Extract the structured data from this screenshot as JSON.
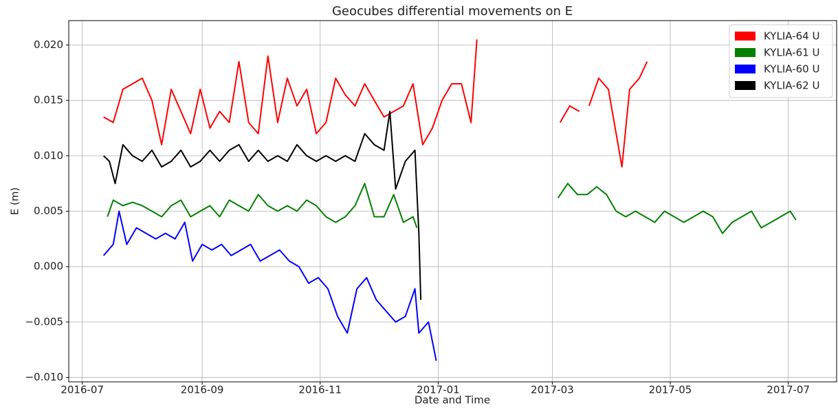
{
  "chart_data": {
    "type": "line",
    "title": "Geocubes differential movements on E",
    "xlabel": "Date and Time",
    "ylabel": "E (m)",
    "xlim": [
      "2016-06-24",
      "2017-07-26"
    ],
    "xticks": [
      "2016-07",
      "2016-09",
      "2016-11",
      "2017-01",
      "2017-03",
      "2017-05",
      "2017-07"
    ],
    "ylim": [
      -0.0104,
      0.0222
    ],
    "yticks": [
      {
        "value": -0.01,
        "label": "−0.010"
      },
      {
        "value": -0.005,
        "label": "−0.005"
      },
      {
        "value": 0,
        "label": "0.000"
      },
      {
        "value": 0.005,
        "label": "0.005"
      },
      {
        "value": 0.01,
        "label": "0.010"
      },
      {
        "value": 0.015,
        "label": "0.015"
      },
      {
        "value": 0.02,
        "label": "0.020"
      }
    ],
    "grid": true,
    "legend": "upper right",
    "series": [
      {
        "name": "KYLIA-64 U",
        "color": "#ff0000",
        "x": [
          "2016-07-12",
          "2016-07-17",
          "2016-07-22",
          "2016-07-27",
          "2016-08-01",
          "2016-08-06",
          "2016-08-11",
          "2016-08-16",
          "2016-08-21",
          "2016-08-26",
          "2016-08-31",
          "2016-09-05",
          "2016-09-10",
          "2016-09-15",
          "2016-09-20",
          "2016-09-25",
          "2016-09-30",
          "2016-10-05",
          "2016-10-10",
          "2016-10-15",
          "2016-10-20",
          "2016-10-25",
          "2016-10-30",
          "2016-11-04",
          "2016-11-09",
          "2016-11-14",
          "2016-11-19",
          "2016-11-24",
          "2016-11-29",
          "2016-12-04",
          "2016-12-09",
          "2016-12-14",
          "2016-12-19",
          "2016-12-24",
          "2016-12-29",
          "2017-01-03",
          "2017-01-08",
          "2017-01-13",
          "2017-01-18",
          "2017-01-21",
          "2017-02-10",
          "2017-02-27",
          "2017-03-02",
          "2017-03-05",
          "2017-03-10",
          "2017-03-15",
          "2017-03-17",
          "2017-03-20",
          "2017-03-25",
          "2017-03-30",
          "2017-04-04",
          "2017-04-06",
          "2017-04-10",
          "2017-04-15",
          "2017-04-19"
        ],
        "values": [
          0.0135,
          0.013,
          0.016,
          0.0165,
          0.017,
          0.015,
          0.011,
          0.016,
          0.014,
          0.012,
          0.016,
          0.0125,
          0.014,
          0.013,
          0.0185,
          0.013,
          0.012,
          0.019,
          0.013,
          0.017,
          0.0145,
          0.016,
          0.012,
          0.013,
          0.017,
          0.0155,
          0.0145,
          0.0165,
          0.015,
          0.0135,
          0.014,
          0.0145,
          0.0165,
          0.011,
          0.0125,
          0.015,
          0.0165,
          0.0165,
          0.013,
          0.0205,
          null,
          0.017,
          null,
          0.013,
          0.0145,
          0.014,
          null,
          0.0145,
          0.017,
          0.016,
          0.011,
          0.009,
          0.016,
          0.017,
          0.0185
        ]
      },
      {
        "name": "KYLIA-61 U",
        "color": "#008000",
        "x": [
          "2016-07-14",
          "2016-07-17",
          "2016-07-22",
          "2016-07-27",
          "2016-08-01",
          "2016-08-06",
          "2016-08-11",
          "2016-08-16",
          "2016-08-21",
          "2016-08-26",
          "2016-08-31",
          "2016-09-05",
          "2016-09-10",
          "2016-09-15",
          "2016-09-20",
          "2016-09-25",
          "2016-09-30",
          "2016-10-05",
          "2016-10-10",
          "2016-10-15",
          "2016-10-20",
          "2016-10-25",
          "2016-10-30",
          "2016-11-04",
          "2016-11-09",
          "2016-11-14",
          "2016-11-19",
          "2016-11-24",
          "2016-11-29",
          "2016-12-04",
          "2016-12-09",
          "2016-12-14",
          "2016-12-19",
          "2016-12-21",
          "2017-02-10",
          "2017-03-04",
          "2017-03-09",
          "2017-03-14",
          "2017-03-19",
          "2017-03-24",
          "2017-03-29",
          "2017-04-03",
          "2017-04-08",
          "2017-04-13",
          "2017-04-18",
          "2017-04-23",
          "2017-04-28",
          "2017-05-03",
          "2017-05-08",
          "2017-05-13",
          "2017-05-18",
          "2017-05-23",
          "2017-05-28",
          "2017-06-02",
          "2017-06-07",
          "2017-06-12",
          "2017-06-17",
          "2017-06-22",
          "2017-06-27",
          "2017-07-02",
          "2017-07-05"
        ],
        "values": [
          0.0045,
          0.006,
          0.0055,
          0.0058,
          0.0055,
          0.005,
          0.0045,
          0.0055,
          0.006,
          0.0045,
          0.005,
          0.0055,
          0.0045,
          0.006,
          0.0055,
          0.005,
          0.0065,
          0.0055,
          0.005,
          0.0055,
          0.005,
          0.006,
          0.0055,
          0.0045,
          0.004,
          0.0045,
          0.0055,
          0.0075,
          0.0045,
          0.0045,
          0.0065,
          0.004,
          0.0045,
          0.0035,
          null,
          0.0062,
          0.0075,
          0.0065,
          0.0065,
          0.0072,
          0.0065,
          0.005,
          0.0045,
          0.005,
          0.0045,
          0.004,
          0.005,
          0.0045,
          0.004,
          0.0045,
          0.005,
          0.0045,
          0.003,
          0.004,
          0.0045,
          0.005,
          0.0035,
          0.004,
          0.0045,
          0.005,
          0.0042
        ]
      },
      {
        "name": "KYLIA-60 U",
        "color": "#0000ff",
        "x": [
          "2016-07-12",
          "2016-07-17",
          "2016-07-20",
          "2016-07-24",
          "2016-07-29",
          "2016-08-03",
          "2016-08-08",
          "2016-08-13",
          "2016-08-18",
          "2016-08-23",
          "2016-08-27",
          "2016-09-01",
          "2016-09-06",
          "2016-09-11",
          "2016-09-16",
          "2016-09-21",
          "2016-09-26",
          "2016-10-01",
          "2016-10-06",
          "2016-10-11",
          "2016-10-16",
          "2016-10-21",
          "2016-10-26",
          "2016-10-31",
          "2016-11-05",
          "2016-11-10",
          "2016-11-15",
          "2016-11-20",
          "2016-11-25",
          "2016-11-30",
          "2016-12-05",
          "2016-12-10",
          "2016-12-15",
          "2016-12-20",
          "2016-12-22",
          "2016-12-27",
          "2016-12-31"
        ],
        "values": [
          0.001,
          0.002,
          0.005,
          0.002,
          0.0035,
          0.003,
          0.0025,
          0.003,
          0.0025,
          0.004,
          0.0005,
          0.002,
          0.0015,
          0.002,
          0.001,
          0.0015,
          0.002,
          0.0005,
          0.001,
          0.0015,
          0.0005,
          0.0,
          -0.0015,
          -0.001,
          -0.002,
          -0.0045,
          -0.006,
          -0.002,
          -0.001,
          -0.003,
          -0.004,
          -0.005,
          -0.0045,
          -0.002,
          -0.006,
          -0.005,
          -0.0085
        ]
      },
      {
        "name": "KYLIA-62 U",
        "color": "#000000",
        "x": [
          "2016-07-12",
          "2016-07-15",
          "2016-07-18",
          "2016-07-22",
          "2016-07-27",
          "2016-08-01",
          "2016-08-06",
          "2016-08-11",
          "2016-08-16",
          "2016-08-21",
          "2016-08-26",
          "2016-08-31",
          "2016-09-05",
          "2016-09-10",
          "2016-09-15",
          "2016-09-20",
          "2016-09-25",
          "2016-09-30",
          "2016-10-05",
          "2016-10-10",
          "2016-10-15",
          "2016-10-20",
          "2016-10-25",
          "2016-10-30",
          "2016-11-04",
          "2016-11-09",
          "2016-11-14",
          "2016-11-19",
          "2016-11-24",
          "2016-11-29",
          "2016-12-04",
          "2016-12-07",
          "2016-12-10",
          "2016-12-15",
          "2016-12-20",
          "2016-12-22",
          "2016-12-23"
        ],
        "values": [
          0.01,
          0.0095,
          0.0075,
          0.011,
          0.01,
          0.0095,
          0.0105,
          0.009,
          0.0095,
          0.0105,
          0.009,
          0.0095,
          0.0105,
          0.0095,
          0.0105,
          0.011,
          0.0095,
          0.0105,
          0.0095,
          0.01,
          0.0095,
          0.011,
          0.01,
          0.0095,
          0.01,
          0.0095,
          0.01,
          0.0095,
          0.012,
          0.011,
          0.0105,
          0.014,
          0.007,
          0.0095,
          0.0105,
          0.003,
          -0.003
        ]
      }
    ]
  }
}
